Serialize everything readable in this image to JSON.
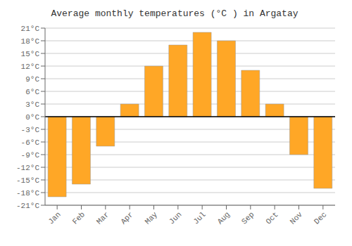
{
  "chart_data": {
    "type": "bar",
    "title": "Average monthly temperatures (°C ) in Argatay",
    "categories": [
      "Jan",
      "Feb",
      "Mar",
      "Apr",
      "May",
      "Jun",
      "Jul",
      "Aug",
      "Sep",
      "Oct",
      "Nov",
      "Dec"
    ],
    "values": [
      -19,
      -16,
      -7,
      3,
      12,
      17,
      20,
      18,
      11,
      3,
      -9,
      -17
    ],
    "color": "#FFA726",
    "ylim": [
      -21,
      21
    ],
    "yticks": [
      {
        "value": -21,
        "label": "-21°C"
      },
      {
        "value": -18,
        "label": "-18°C"
      },
      {
        "value": -15,
        "label": "-15°C"
      },
      {
        "value": -12,
        "label": "-12°C"
      },
      {
        "value": -9,
        "label": "-9°C"
      },
      {
        "value": -6,
        "label": "-6°C"
      },
      {
        "value": -3,
        "label": "-3°C"
      },
      {
        "value": 0,
        "label": "0°C"
      },
      {
        "value": 3,
        "label": "3°C"
      },
      {
        "value": 6,
        "label": "6°C"
      },
      {
        "value": 9,
        "label": "9°C"
      },
      {
        "value": 12,
        "label": "12°C"
      },
      {
        "value": 15,
        "label": "15°C"
      },
      {
        "value": 18,
        "label": "18°C"
      },
      {
        "value": 21,
        "label": "21°C"
      }
    ],
    "grid": true
  }
}
